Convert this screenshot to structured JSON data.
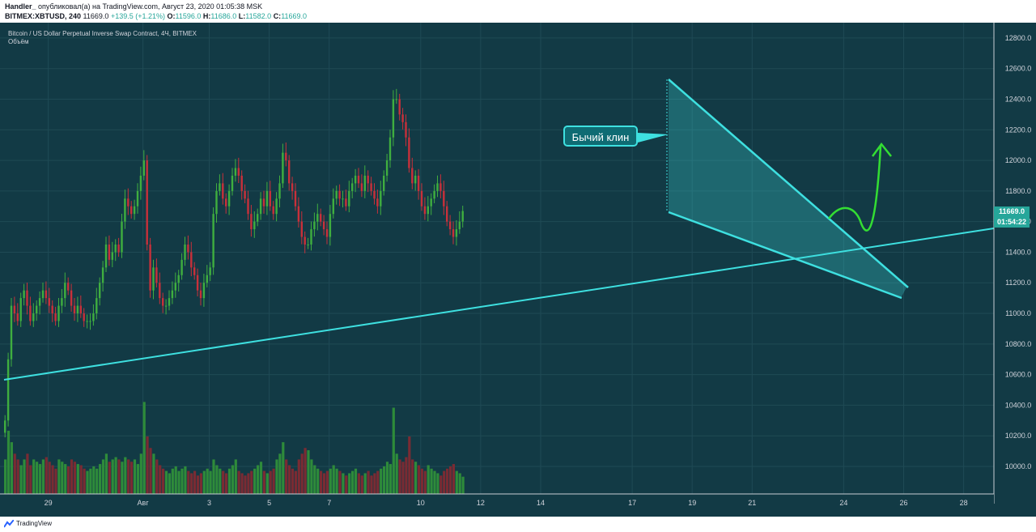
{
  "header": {
    "author": "Handler_",
    "published": "опубликовал(а) на TradingView.com, Август 23, 2020 01:05:38 MSK",
    "symbol": "BITMEX:XBTUSD, 240",
    "last": "11669.0",
    "change": "+139.5 (+1.21%)",
    "open_label": "O:",
    "open": "11596.0",
    "high_label": "H:",
    "high": "11686.0",
    "low_label": "L:",
    "low": "11582.0",
    "close_label": "C:",
    "close": "11669.0"
  },
  "legend": {
    "title": "Bitcoin / US Dollar Perpetual Inverse Swap Contract, 4Ч, BITMEX",
    "volume": "Объём"
  },
  "price_badge": {
    "price": "11669.0",
    "countdown": "01:54:22"
  },
  "annotation": {
    "label": "Бычий клин"
  },
  "footer": {
    "brand": "TradingView"
  },
  "colors": {
    "background": "#123a45",
    "up": "#26a69a",
    "up_candle": "#3fae3f",
    "down_candle": "#c8303a",
    "volume_up": "#2e8b3a",
    "volume_down": "#7a2b33",
    "lines": "#3ee0e0"
  },
  "chart_data": {
    "type": "candlestick",
    "yticks": [
      10000,
      10200,
      10400,
      10600,
      10800,
      11000,
      11200,
      11400,
      11600,
      11800,
      12000,
      12200,
      12400,
      12600,
      12800
    ],
    "ytick_labels": [
      "10000.0",
      "10200.0",
      "10400.0",
      "10600.0",
      "10800.0",
      "11000.0",
      "11200.0",
      "11400.0",
      "11600.0",
      "11800.0",
      "12000.0",
      "12200.0",
      "12400.0",
      "12600.0",
      "12800.0"
    ],
    "ylim": [
      9820,
      12900
    ],
    "xticks": [
      {
        "label": "29",
        "bar": 14
      },
      {
        "label": "Авг",
        "bar": 44
      },
      {
        "label": "3",
        "bar": 65
      },
      {
        "label": "5",
        "bar": 84
      },
      {
        "label": "7",
        "bar": 103
      },
      {
        "label": "10",
        "bar": 132
      },
      {
        "label": "12",
        "bar": 151
      },
      {
        "label": "14",
        "bar": 170
      },
      {
        "label": "17",
        "bar": 199
      },
      {
        "label": "19",
        "bar": 218
      },
      {
        "label": "21",
        "bar": 237
      },
      {
        "label": "24",
        "bar": 266
      },
      {
        "label": "26",
        "bar": 285
      },
      {
        "label": "28",
        "bar": 304
      }
    ],
    "closes": [
      10300,
      10700,
      11050,
      11000,
      10950,
      11100,
      11150,
      11050,
      10950,
      11000,
      11050,
      11100,
      11150,
      11100,
      11050,
      11000,
      10950,
      11050,
      11100,
      11200,
      11150,
      11050,
      11000,
      11050,
      11000,
      10950,
      10950,
      10950,
      11000,
      11100,
      11200,
      11300,
      11450,
      11350,
      11400,
      11450,
      11400,
      11600,
      11750,
      11700,
      11650,
      11700,
      11800,
      11900,
      12000,
      11450,
      11150,
      11300,
      11200,
      11100,
      11050,
      11050,
      11100,
      11150,
      11200,
      11250,
      11350,
      11450,
      11400,
      11300,
      11250,
      11150,
      11100,
      11200,
      11250,
      11300,
      11650,
      11800,
      11850,
      11750,
      11700,
      11800,
      11900,
      11950,
      11900,
      11800,
      11750,
      11650,
      11550,
      11600,
      11650,
      11750,
      11700,
      11800,
      11700,
      11650,
      11750,
      11850,
      12050,
      12000,
      11850,
      11800,
      11700,
      11600,
      11500,
      11450,
      11450,
      11550,
      11600,
      11650,
      11600,
      11550,
      11500,
      11650,
      11750,
      11800,
      11750,
      11750,
      11700,
      11800,
      11850,
      11900,
      11850,
      11800,
      11900,
      11850,
      11800,
      11750,
      11700,
      11800,
      11900,
      12000,
      12150,
      12400,
      12400,
      12300,
      12250,
      12150,
      11950,
      11850,
      11900,
      11800,
      11700,
      11650,
      11700,
      11750,
      11800,
      11850,
      11800,
      11700,
      11600,
      11550,
      11500,
      11550,
      11600,
      11669
    ],
    "volume_max": 1.0,
    "volumes": [
      0.3,
      0.55,
      0.45,
      0.35,
      0.3,
      0.25,
      0.3,
      0.35,
      0.25,
      0.3,
      0.28,
      0.26,
      0.3,
      0.32,
      0.28,
      0.25,
      0.22,
      0.3,
      0.28,
      0.26,
      0.24,
      0.3,
      0.28,
      0.26,
      0.25,
      0.22,
      0.2,
      0.22,
      0.24,
      0.22,
      0.26,
      0.3,
      0.35,
      0.28,
      0.3,
      0.32,
      0.3,
      0.28,
      0.32,
      0.3,
      0.28,
      0.3,
      0.26,
      0.35,
      0.8,
      0.5,
      0.4,
      0.35,
      0.3,
      0.25,
      0.22,
      0.2,
      0.18,
      0.22,
      0.24,
      0.2,
      0.22,
      0.24,
      0.2,
      0.18,
      0.2,
      0.16,
      0.18,
      0.2,
      0.22,
      0.2,
      0.3,
      0.25,
      0.22,
      0.2,
      0.18,
      0.22,
      0.25,
      0.3,
      0.2,
      0.18,
      0.16,
      0.18,
      0.2,
      0.22,
      0.25,
      0.28,
      0.2,
      0.18,
      0.2,
      0.22,
      0.3,
      0.35,
      0.45,
      0.3,
      0.25,
      0.22,
      0.2,
      0.3,
      0.35,
      0.4,
      0.38,
      0.3,
      0.25,
      0.22,
      0.2,
      0.18,
      0.2,
      0.22,
      0.25,
      0.22,
      0.2,
      0.18,
      0.16,
      0.18,
      0.2,
      0.22,
      0.18,
      0.16,
      0.18,
      0.2,
      0.16,
      0.18,
      0.2,
      0.22,
      0.24,
      0.28,
      0.26,
      0.75,
      0.35,
      0.3,
      0.28,
      0.32,
      0.5,
      0.3,
      0.28,
      0.25,
      0.22,
      0.2,
      0.25,
      0.22,
      0.2,
      0.18,
      0.16,
      0.2,
      0.22,
      0.24,
      0.26,
      0.2,
      0.18,
      0.15
    ]
  }
}
